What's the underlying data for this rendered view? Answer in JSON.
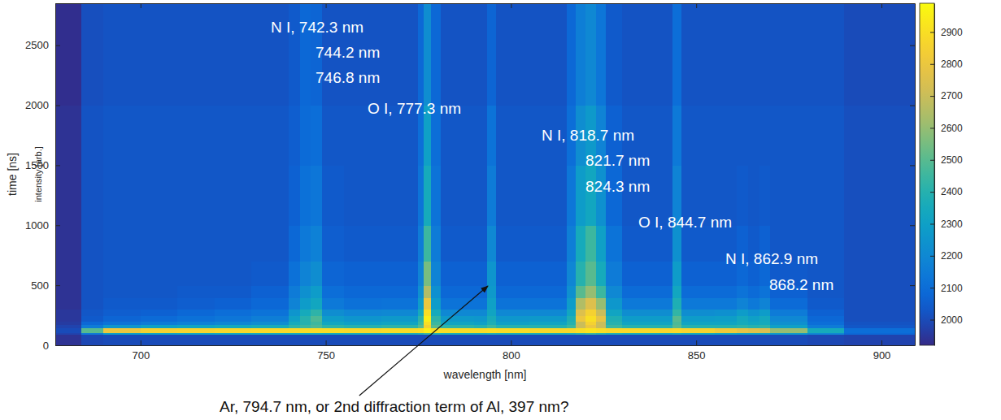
{
  "chart_data": {
    "type": "heatmap",
    "xlabel": "wavelength [nm]",
    "ylabel": "time [ns]",
    "xlim": [
      677,
      909
    ],
    "ylim": [
      0,
      2850
    ],
    "xticks": [
      700,
      750,
      800,
      850,
      900
    ],
    "yticks": [
      0,
      500,
      1000,
      1500,
      2000,
      2500
    ],
    "x_edges": [
      677,
      684,
      690,
      700,
      710,
      720,
      730,
      740,
      743,
      746,
      749,
      755,
      765,
      775,
      776.5,
      778.5,
      781,
      790,
      793.5,
      796,
      805,
      815,
      817.5,
      820,
      823,
      825.5,
      830,
      840,
      843.5,
      846,
      855,
      861,
      864,
      867,
      870,
      880,
      890,
      909
    ],
    "y_edges": [
      0,
      90,
      105,
      145,
      170,
      200,
      250,
      300,
      400,
      500,
      700,
      1000,
      1500,
      2000,
      2850
    ],
    "z": [
      [
        1940,
        1990,
        2000,
        2000,
        2000,
        2000,
        2000,
        2000,
        2000,
        2000,
        2000,
        2000,
        2000,
        2000,
        2000,
        2000,
        2000,
        2000,
        2000,
        2000,
        2000,
        2000,
        2000,
        2000,
        2000,
        2000,
        2000,
        2000,
        2000,
        2000,
        2000,
        2000,
        2000,
        2000,
        2000,
        1990,
        1980
      ],
      [
        1980,
        2150,
        2300,
        2320,
        2330,
        2340,
        2350,
        2360,
        2360,
        2370,
        2360,
        2370,
        2380,
        2400,
        2450,
        2400,
        2380,
        2380,
        2390,
        2380,
        2380,
        2390,
        2420,
        2450,
        2420,
        2390,
        2370,
        2360,
        2380,
        2360,
        2340,
        2320,
        2320,
        2320,
        2280,
        2200,
        2080
      ],
      [
        2000,
        2500,
        2800,
        2850,
        2860,
        2870,
        2880,
        2880,
        2890,
        2890,
        2890,
        2880,
        2890,
        2900,
        2950,
        2900,
        2890,
        2890,
        2900,
        2890,
        2880,
        2880,
        2900,
        2920,
        2900,
        2880,
        2880,
        2870,
        2880,
        2860,
        2820,
        2780,
        2760,
        2740,
        2600,
        2350,
        2100
      ],
      [
        1980,
        2150,
        2250,
        2300,
        2320,
        2340,
        2360,
        2420,
        2450,
        2480,
        2420,
        2400,
        2420,
        2500,
        2850,
        2500,
        2420,
        2400,
        2450,
        2400,
        2400,
        2450,
        2700,
        2800,
        2700,
        2450,
        2400,
        2400,
        2500,
        2400,
        2400,
        2420,
        2400,
        2420,
        2300,
        2150,
        2030
      ],
      [
        1960,
        2080,
        2120,
        2150,
        2170,
        2190,
        2220,
        2350,
        2400,
        2450,
        2330,
        2300,
        2320,
        2450,
        2900,
        2450,
        2320,
        2300,
        2380,
        2300,
        2320,
        2400,
        2700,
        2850,
        2700,
        2400,
        2320,
        2320,
        2480,
        2320,
        2320,
        2350,
        2330,
        2350,
        2230,
        2100,
        2020
      ],
      [
        1950,
        2040,
        2070,
        2090,
        2110,
        2130,
        2160,
        2300,
        2400,
        2480,
        2280,
        2250,
        2270,
        2420,
        2950,
        2420,
        2270,
        2260,
        2360,
        2260,
        2270,
        2380,
        2800,
        2900,
        2780,
        2380,
        2280,
        2280,
        2500,
        2280,
        2290,
        2340,
        2300,
        2340,
        2200,
        2080,
        2010
      ],
      [
        1950,
        2030,
        2050,
        2060,
        2080,
        2100,
        2120,
        2250,
        2350,
        2420,
        2220,
        2190,
        2200,
        2350,
        2900,
        2350,
        2200,
        2200,
        2320,
        2200,
        2200,
        2330,
        2750,
        2850,
        2700,
        2320,
        2220,
        2220,
        2430,
        2220,
        2230,
        2280,
        2240,
        2280,
        2150,
        2060,
        2010
      ],
      [
        1940,
        2020,
        2040,
        2040,
        2050,
        2060,
        2080,
        2180,
        2280,
        2330,
        2140,
        2110,
        2120,
        2280,
        2800,
        2280,
        2120,
        2120,
        2300,
        2120,
        2120,
        2280,
        2650,
        2750,
        2600,
        2260,
        2140,
        2140,
        2380,
        2140,
        2140,
        2180,
        2140,
        2180,
        2090,
        2040,
        2010
      ],
      [
        1940,
        2020,
        2030,
        2030,
        2040,
        2040,
        2060,
        2150,
        2230,
        2280,
        2100,
        2080,
        2080,
        2230,
        2650,
        2230,
        2080,
        2080,
        2270,
        2080,
        2080,
        2230,
        2500,
        2600,
        2450,
        2200,
        2090,
        2090,
        2330,
        2090,
        2090,
        2120,
        2090,
        2120,
        2060,
        2030,
        2010
      ],
      [
        1940,
        2020,
        2030,
        2030,
        2030,
        2030,
        2040,
        2110,
        2180,
        2220,
        2070,
        2060,
        2060,
        2180,
        2550,
        2180,
        2060,
        2060,
        2250,
        2060,
        2060,
        2190,
        2400,
        2500,
        2350,
        2150,
        2060,
        2060,
        2280,
        2060,
        2060,
        2080,
        2060,
        2080,
        2040,
        2030,
        2010
      ],
      [
        1940,
        2020,
        2030,
        2030,
        2030,
        2030,
        2030,
        2080,
        2140,
        2170,
        2050,
        2040,
        2040,
        2150,
        2450,
        2150,
        2040,
        2040,
        2200,
        2040,
        2040,
        2160,
        2350,
        2450,
        2300,
        2120,
        2040,
        2040,
        2230,
        2040,
        2040,
        2060,
        2040,
        2060,
        2030,
        2030,
        2010
      ],
      [
        1940,
        2020,
        2030,
        2030,
        2030,
        2030,
        2030,
        2060,
        2110,
        2130,
        2040,
        2030,
        2030,
        2120,
        2350,
        2120,
        2030,
        2030,
        2150,
        2030,
        2030,
        2130,
        2280,
        2330,
        2230,
        2080,
        2030,
        2030,
        2180,
        2030,
        2030,
        2040,
        2030,
        2040,
        2030,
        2030,
        2010
      ],
      [
        1940,
        2020,
        2030,
        2030,
        2030,
        2030,
        2030,
        2050,
        2090,
        2100,
        2030,
        2030,
        2030,
        2100,
        2300,
        2100,
        2030,
        2030,
        2120,
        2030,
        2030,
        2100,
        2220,
        2270,
        2180,
        2060,
        2030,
        2030,
        2140,
        2030,
        2030,
        2030,
        2030,
        2030,
        2030,
        2030,
        2010
      ],
      [
        1930,
        2010,
        2020,
        2020,
        2020,
        2020,
        2020,
        2040,
        2080,
        2070,
        2020,
        2020,
        2020,
        2080,
        2220,
        2080,
        2020,
        2020,
        2070,
        2020,
        2020,
        2080,
        2160,
        2200,
        2130,
        2040,
        2020,
        2020,
        2100,
        2020,
        2020,
        2020,
        2020,
        2020,
        2020,
        2020,
        2000
      ]
    ],
    "colorbar": {
      "label": "intensity [arb.]",
      "range": [
        1920,
        2990
      ],
      "ticks": [
        2000,
        2100,
        2200,
        2300,
        2400,
        2500,
        2600,
        2700,
        2800,
        2900
      ]
    },
    "annotations": [
      "N I, 742.3 nm",
      "744.2 nm",
      "746.8 nm",
      "O I, 777.3 nm",
      "N I, 818.7 nm",
      "821.7 nm",
      "824.3 nm",
      "O I, 844.7 nm",
      "N I, 862.9 nm",
      "868.2 nm",
      "Ar, 794.7 nm, or 2nd diffraction term of Al, 397 nm?"
    ]
  }
}
